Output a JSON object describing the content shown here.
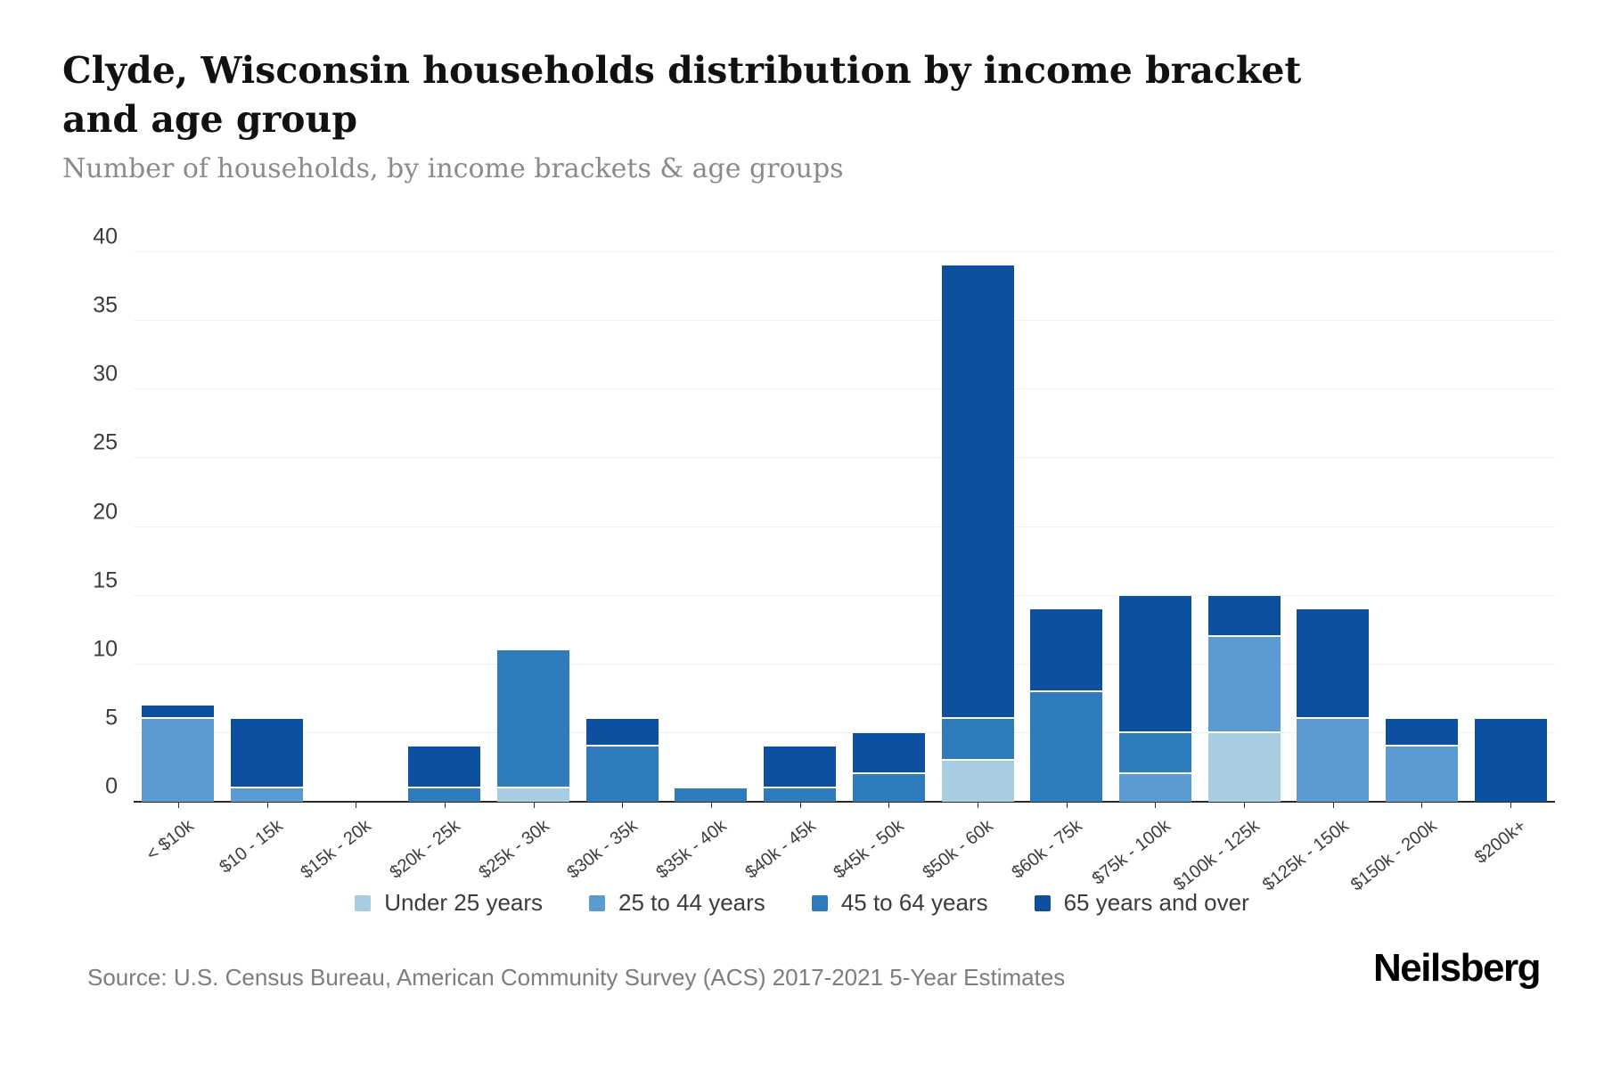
{
  "header": {
    "title": "Clyde, Wisconsin households distribution by income bracket and age group",
    "subtitle": "Number of households, by income brackets & age groups"
  },
  "chart_data": {
    "type": "bar",
    "stacked": true,
    "title": "Clyde, Wisconsin households distribution by income bracket and age group",
    "xlabel": "",
    "ylabel": "Number of households",
    "ylim": [
      0,
      40
    ],
    "ytick_step": 5,
    "grid": true,
    "legend_position": "bottom",
    "categories": [
      "< $10k",
      "$10 - 15k",
      "$15k - 20k",
      "$20k - 25k",
      "$25k - 30k",
      "$30k - 35k",
      "$35k - 40k",
      "$40k - 45k",
      "$45k - 50k",
      "$50k - 60k",
      "$60k - 75k",
      "$75k - 100k",
      "$100k - 125k",
      "$125k - 150k",
      "$150k - 200k",
      "$200k+"
    ],
    "series": [
      {
        "name": "Under 25 years",
        "color": "#a8cce2",
        "values": [
          0,
          0,
          0,
          0,
          1,
          0,
          0,
          0,
          0,
          3,
          0,
          0,
          5,
          0,
          0,
          0
        ]
      },
      {
        "name": "25 to 44 years",
        "color": "#5b9bd1",
        "values": [
          6,
          1,
          0,
          0,
          0,
          0,
          0,
          0,
          0,
          0,
          0,
          2,
          7,
          6,
          4,
          0
        ]
      },
      {
        "name": "45 to 64 years",
        "color": "#2e7cbc",
        "values": [
          0,
          0,
          0,
          1,
          10,
          4,
          1,
          1,
          2,
          3,
          8,
          3,
          0,
          0,
          0,
          0
        ]
      },
      {
        "name": "65 years and over",
        "color": "#0d50a0",
        "values": [
          1,
          5,
          0,
          3,
          0,
          2,
          0,
          3,
          3,
          33,
          6,
          10,
          3,
          8,
          2,
          6
        ]
      }
    ],
    "totals": [
      7,
      6,
      0,
      4,
      11,
      6,
      1,
      4,
      5,
      39,
      14,
      15,
      15,
      14,
      6,
      6
    ]
  },
  "footer": {
    "source": "Source: U.S. Census Bureau, American Community Survey (ACS) 2017-2021 5-Year Estimates",
    "logo": "Neilsberg"
  }
}
